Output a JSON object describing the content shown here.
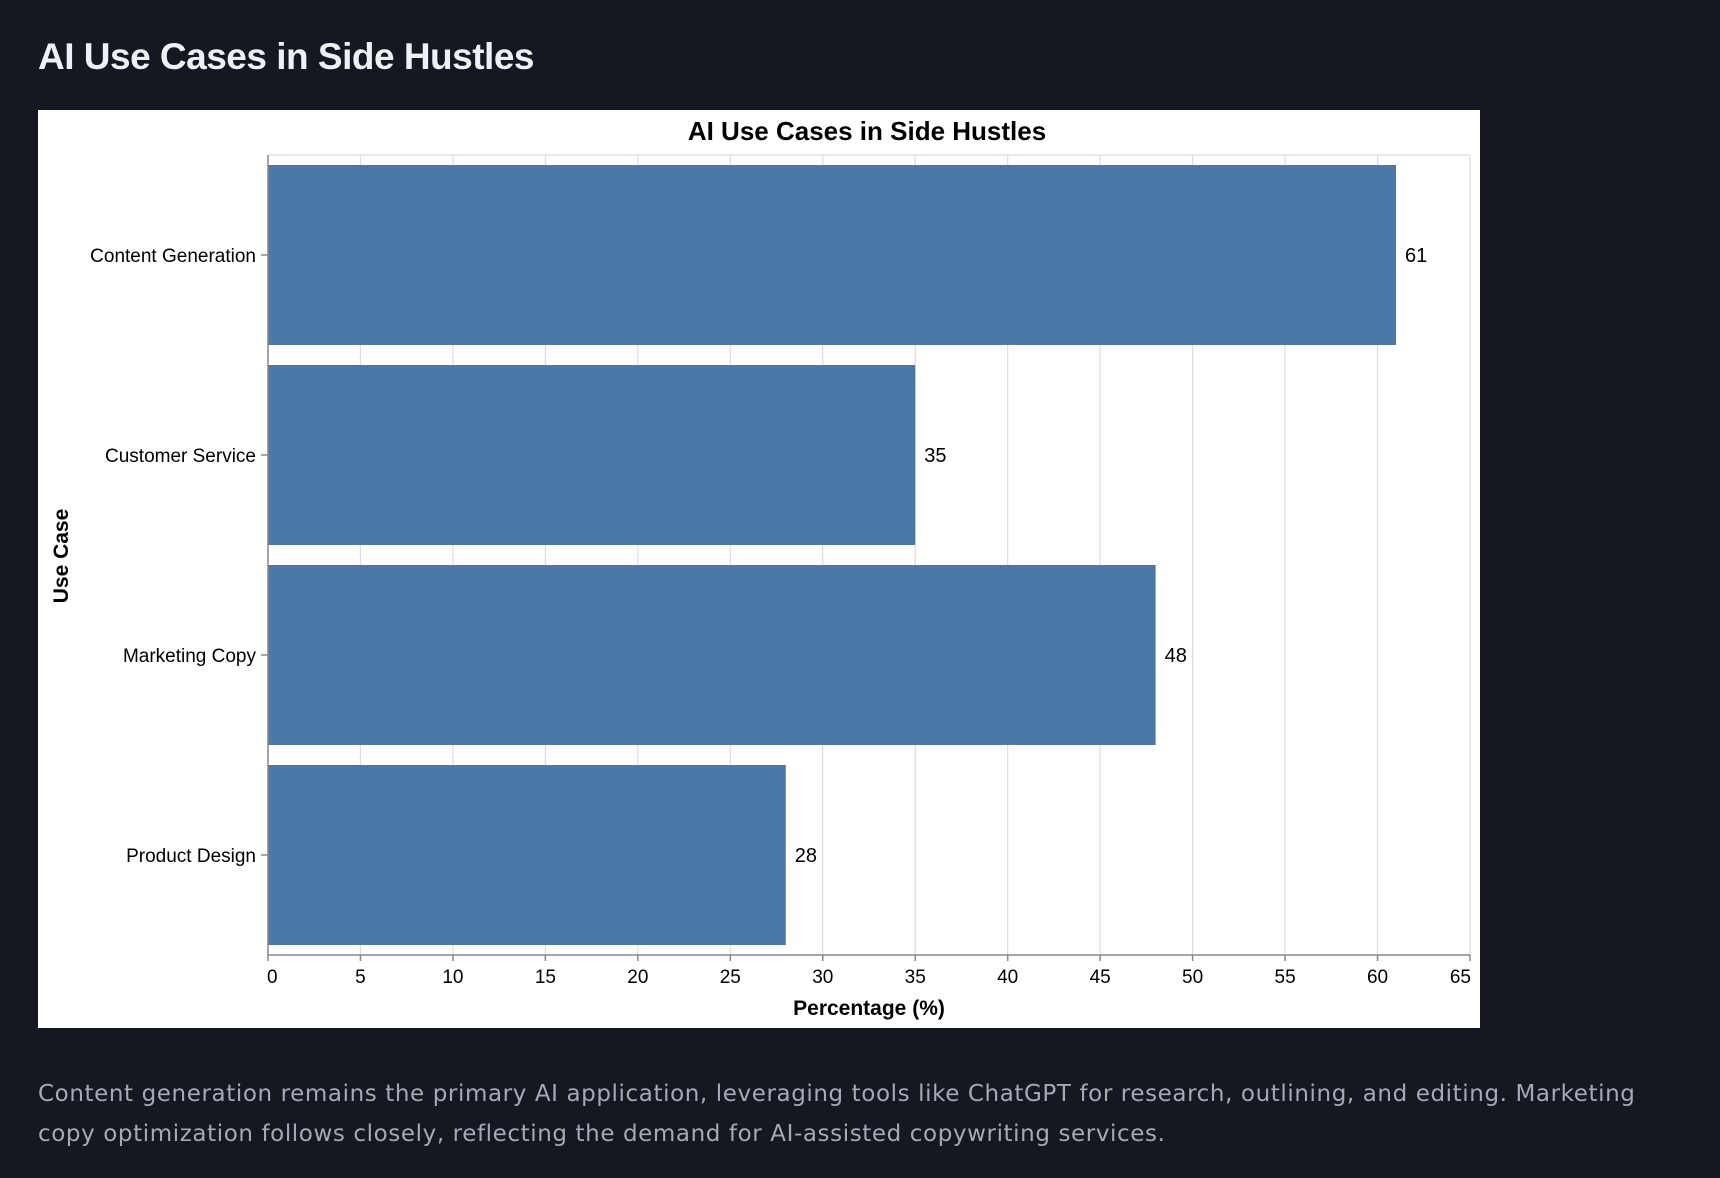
{
  "page": {
    "heading": "AI Use Cases in Side Hustles",
    "caption": "Content generation remains the primary AI application, leveraging tools like ChatGPT for research, outlining, and editing. Marketing copy optimization follows closely, reflecting the demand for AI-assisted copywriting services."
  },
  "chart_data": {
    "type": "bar",
    "orientation": "horizontal",
    "title": "AI Use Cases in Side Hustles",
    "xlabel": "Percentage (%)",
    "ylabel": "Use Case",
    "categories": [
      "Content Generation",
      "Customer Service",
      "Marketing Copy",
      "Product Design"
    ],
    "values": [
      61,
      35,
      48,
      28
    ],
    "data_labels": [
      "61",
      "35",
      "48",
      "28"
    ],
    "xlim": [
      0,
      65
    ],
    "xticks": [
      0,
      5,
      10,
      15,
      20,
      25,
      30,
      35,
      40,
      45,
      50,
      55,
      60,
      65
    ],
    "grid": "vertical",
    "legend": "none",
    "colors": {
      "bar": "#4c78a8",
      "grid": "#dddddd",
      "axis": "#888888",
      "text": "#000000"
    }
  }
}
